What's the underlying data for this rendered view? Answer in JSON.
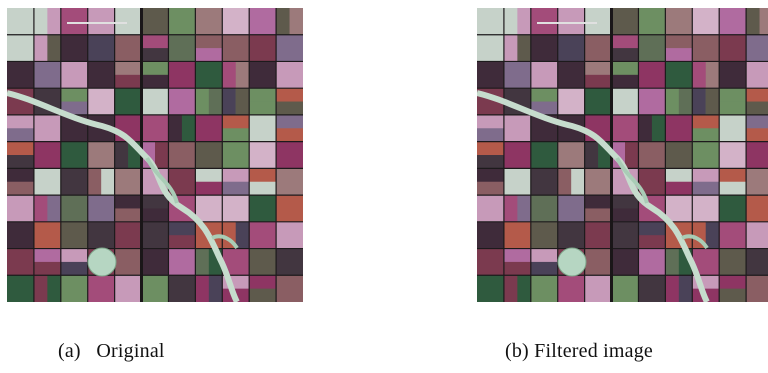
{
  "figure": {
    "panels": [
      {
        "caption": "(a)   Original",
        "image": "satellite-farmland-rgb"
      },
      {
        "caption": "(b) Filtered image",
        "image": "satellite-farmland-rgb-filtered"
      }
    ],
    "palette": [
      "#7b3a4f",
      "#a34c7a",
      "#5e5a4c",
      "#3f2b3a",
      "#b06ba0",
      "#8a5e63",
      "#6d8f62",
      "#c79ab9",
      "#4a4258",
      "#9c7a7b",
      "#2f5a3e",
      "#d3b2c8",
      "#8e3563",
      "#5f6f57",
      "#b45a4a",
      "#7f6c8c",
      "#c6d2c9",
      "#423640"
    ]
  }
}
